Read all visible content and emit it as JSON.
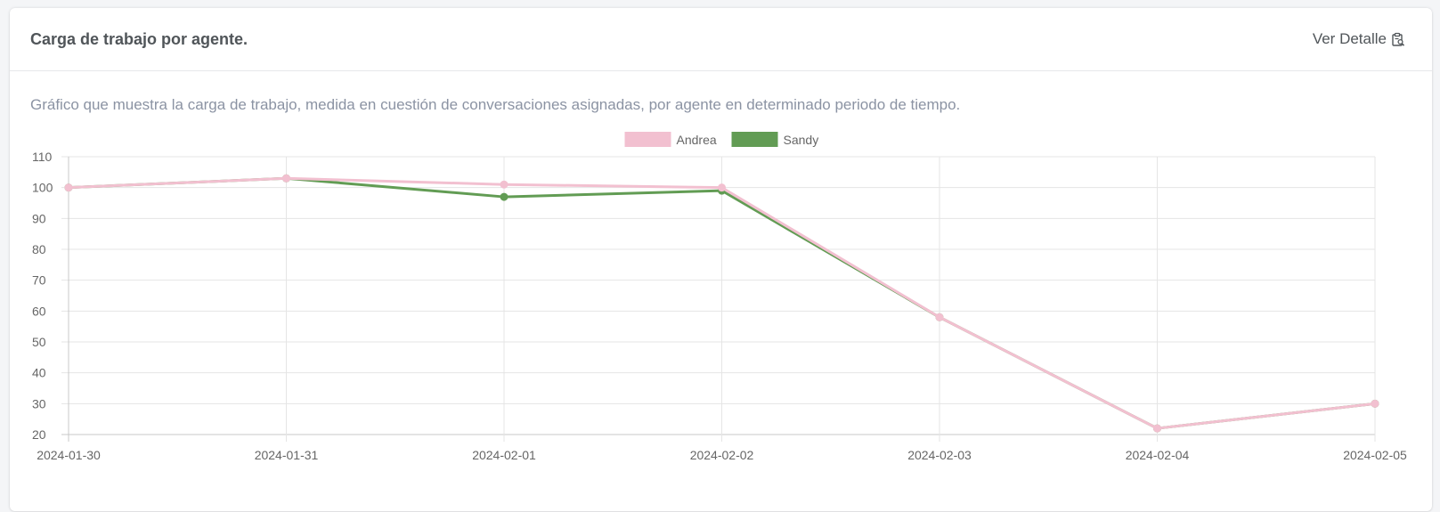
{
  "card": {
    "title": "Carga de trabajo por agente.",
    "detail_link_label": "Ver Detalle",
    "detail_icon": "clipboard-search-icon",
    "description": "Gráfico que muestra la carga de trabajo, medida en cuestión de conversaciones asignadas, por agente en determinado periodo de tiempo."
  },
  "chart_data": {
    "type": "line",
    "title": "",
    "xlabel": "",
    "ylabel": "",
    "ylim": [
      20,
      110
    ],
    "yticks": [
      20,
      30,
      40,
      50,
      60,
      70,
      80,
      90,
      100,
      110
    ],
    "grid": true,
    "legend_position": "top-center",
    "categories": [
      "2024-01-30",
      "2024-01-31",
      "2024-02-01",
      "2024-02-02",
      "2024-02-03",
      "2024-02-04",
      "2024-02-05"
    ],
    "series": [
      {
        "name": "Sandy",
        "color": "#629c54",
        "values": [
          100,
          103,
          97,
          99,
          58,
          22,
          30
        ]
      },
      {
        "name": "Andrea",
        "color": "#f2c0d0",
        "values": [
          100,
          103,
          101,
          100,
          58,
          22,
          30
        ]
      }
    ],
    "legend_order": [
      "Andrea",
      "Sandy"
    ]
  }
}
